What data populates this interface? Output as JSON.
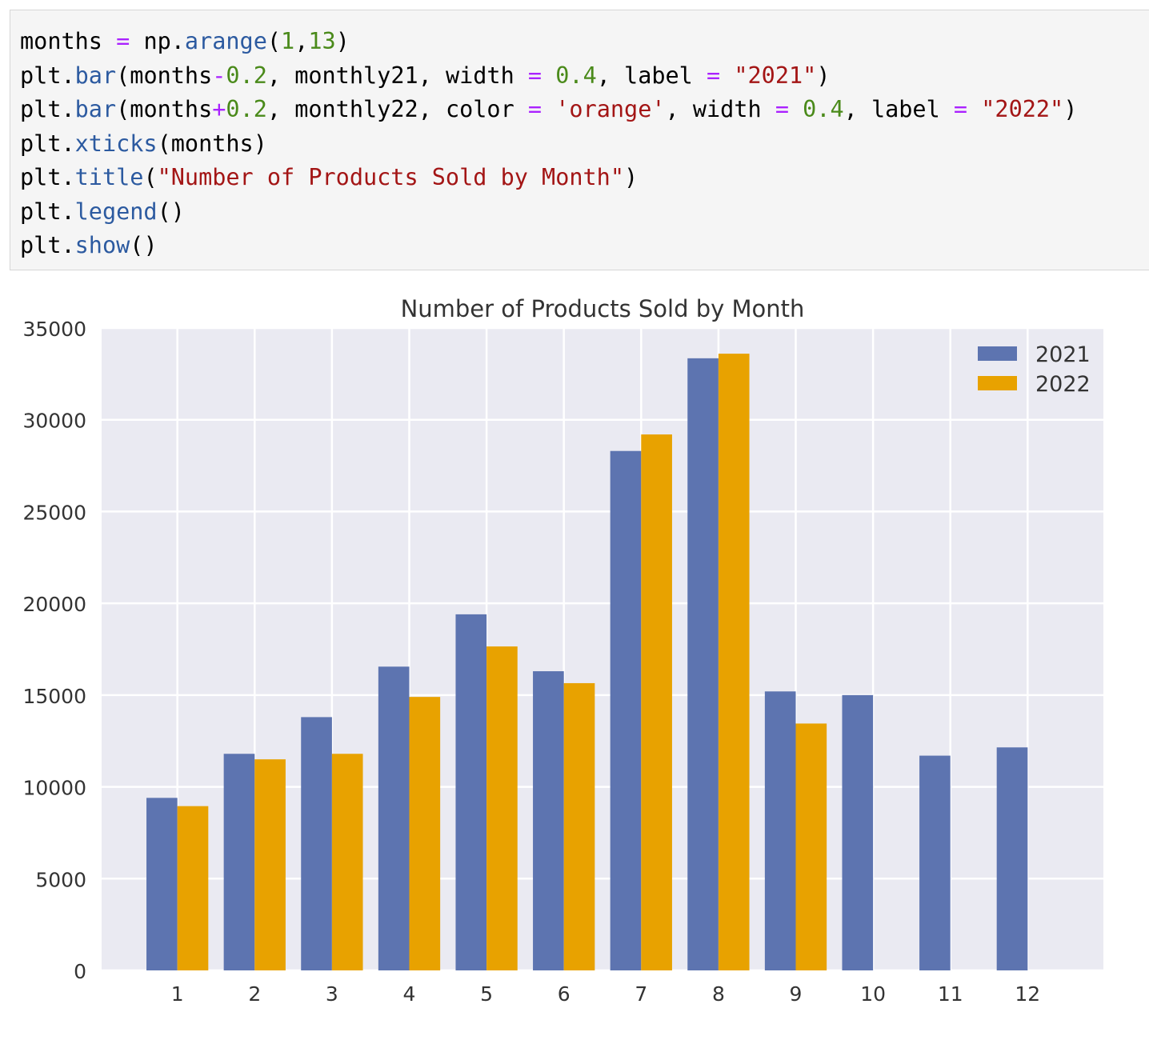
{
  "code_cell": {
    "lines": [
      [
        {
          "t": "months ",
          "c": "plain"
        },
        {
          "t": "=",
          "c": "op"
        },
        {
          "t": " np.",
          "c": "plain"
        },
        {
          "t": "arange",
          "c": "fn"
        },
        {
          "t": "(",
          "c": "plain"
        },
        {
          "t": "1",
          "c": "num"
        },
        {
          "t": ",",
          "c": "plain"
        },
        {
          "t": "13",
          "c": "num"
        },
        {
          "t": ")",
          "c": "plain"
        }
      ],
      [
        {
          "t": "plt.",
          "c": "plain"
        },
        {
          "t": "bar",
          "c": "fn"
        },
        {
          "t": "(months",
          "c": "plain"
        },
        {
          "t": "-",
          "c": "op"
        },
        {
          "t": "0.2",
          "c": "num"
        },
        {
          "t": ", monthly21, width ",
          "c": "plain"
        },
        {
          "t": "=",
          "c": "op"
        },
        {
          "t": " ",
          "c": "plain"
        },
        {
          "t": "0.4",
          "c": "num"
        },
        {
          "t": ", label ",
          "c": "plain"
        },
        {
          "t": "=",
          "c": "op"
        },
        {
          "t": " ",
          "c": "plain"
        },
        {
          "t": "\"2021\"",
          "c": "str"
        },
        {
          "t": ")",
          "c": "plain"
        }
      ],
      [
        {
          "t": "plt.",
          "c": "plain"
        },
        {
          "t": "bar",
          "c": "fn"
        },
        {
          "t": "(months",
          "c": "plain"
        },
        {
          "t": "+",
          "c": "op"
        },
        {
          "t": "0.2",
          "c": "num"
        },
        {
          "t": ", monthly22, color ",
          "c": "plain"
        },
        {
          "t": "=",
          "c": "op"
        },
        {
          "t": " ",
          "c": "plain"
        },
        {
          "t": "'orange'",
          "c": "str"
        },
        {
          "t": ", width ",
          "c": "plain"
        },
        {
          "t": "=",
          "c": "op"
        },
        {
          "t": " ",
          "c": "plain"
        },
        {
          "t": "0.4",
          "c": "num"
        },
        {
          "t": ", label ",
          "c": "plain"
        },
        {
          "t": "=",
          "c": "op"
        },
        {
          "t": " ",
          "c": "plain"
        },
        {
          "t": "\"2022\"",
          "c": "str"
        },
        {
          "t": ")",
          "c": "plain"
        }
      ],
      [
        {
          "t": "plt.",
          "c": "plain"
        },
        {
          "t": "xticks",
          "c": "fn"
        },
        {
          "t": "(months)",
          "c": "plain"
        }
      ],
      [
        {
          "t": "plt.",
          "c": "plain"
        },
        {
          "t": "title",
          "c": "fn"
        },
        {
          "t": "(",
          "c": "plain"
        },
        {
          "t": "\"Number of Products Sold by Month\"",
          "c": "str"
        },
        {
          "t": ")",
          "c": "plain"
        }
      ],
      [
        {
          "t": "plt.",
          "c": "plain"
        },
        {
          "t": "legend",
          "c": "fn"
        },
        {
          "t": "()",
          "c": "plain"
        }
      ],
      [
        {
          "t": "plt.",
          "c": "plain"
        },
        {
          "t": "show",
          "c": "fn"
        },
        {
          "t": "()",
          "c": "plain"
        }
      ]
    ]
  },
  "colors": {
    "series_2021": "#5d74b0",
    "series_2022": "#e8a200",
    "plot_background": "#eaeaf2",
    "grid": "#ffffff",
    "text": "#333333"
  },
  "chart_data": {
    "type": "bar",
    "title": "Number of Products Sold by Month",
    "xlabel": "",
    "ylabel": "",
    "x": [
      1,
      2,
      3,
      4,
      5,
      6,
      7,
      8,
      9,
      10,
      11,
      12
    ],
    "categories": [
      "1",
      "2",
      "3",
      "4",
      "5",
      "6",
      "7",
      "8",
      "9",
      "10",
      "11",
      "12"
    ],
    "xlim": [
      0.02,
      12.98
    ],
    "ylim": [
      0,
      35000
    ],
    "yticks": [
      0,
      5000,
      10000,
      15000,
      20000,
      25000,
      30000,
      35000
    ],
    "ytick_labels": [
      "0",
      "5000",
      "10000",
      "15000",
      "20000",
      "25000",
      "30000",
      "35000"
    ],
    "bar_width": 0.4,
    "grid": true,
    "legend_position": "top-right",
    "series": [
      {
        "name": "2021",
        "offset": -0.2,
        "color": "#5d74b0",
        "values": [
          9400,
          11800,
          13800,
          16550,
          19400,
          16300,
          28300,
          33350,
          15200,
          15000,
          11700,
          12150
        ]
      },
      {
        "name": "2022",
        "offset": 0.2,
        "color": "#e8a200",
        "values": [
          8950,
          11500,
          11800,
          14900,
          17650,
          15650,
          29200,
          33600,
          13450,
          null,
          null,
          null
        ]
      }
    ]
  }
}
